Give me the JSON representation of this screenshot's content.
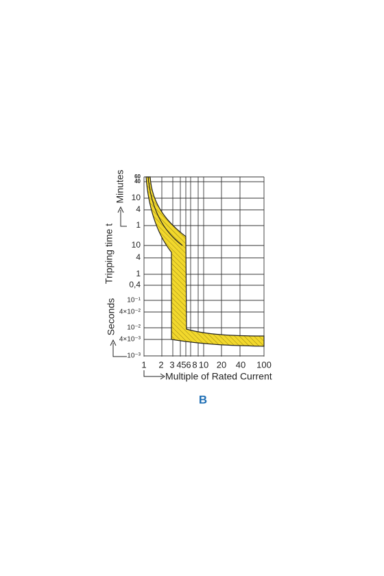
{
  "chart": {
    "y_axis_title": "Tripping time t",
    "y_minutes_label": "Minutes",
    "y_seconds_label": "Seconds",
    "x_axis_title": "Multiple of Rated Current",
    "y_tick_labels": [
      "60",
      "40",
      "10",
      "4",
      "1",
      "10",
      "4",
      "1",
      "0,4",
      "10⁻¹",
      "4×10⁻²",
      "10⁻²",
      "4×10⁻³",
      "10⁻³"
    ],
    "x_tick_labels": [
      "1",
      "2",
      "3",
      "4",
      "5",
      "6",
      "8",
      "10",
      "20",
      "40",
      "100"
    ]
  },
  "caption": "B"
}
